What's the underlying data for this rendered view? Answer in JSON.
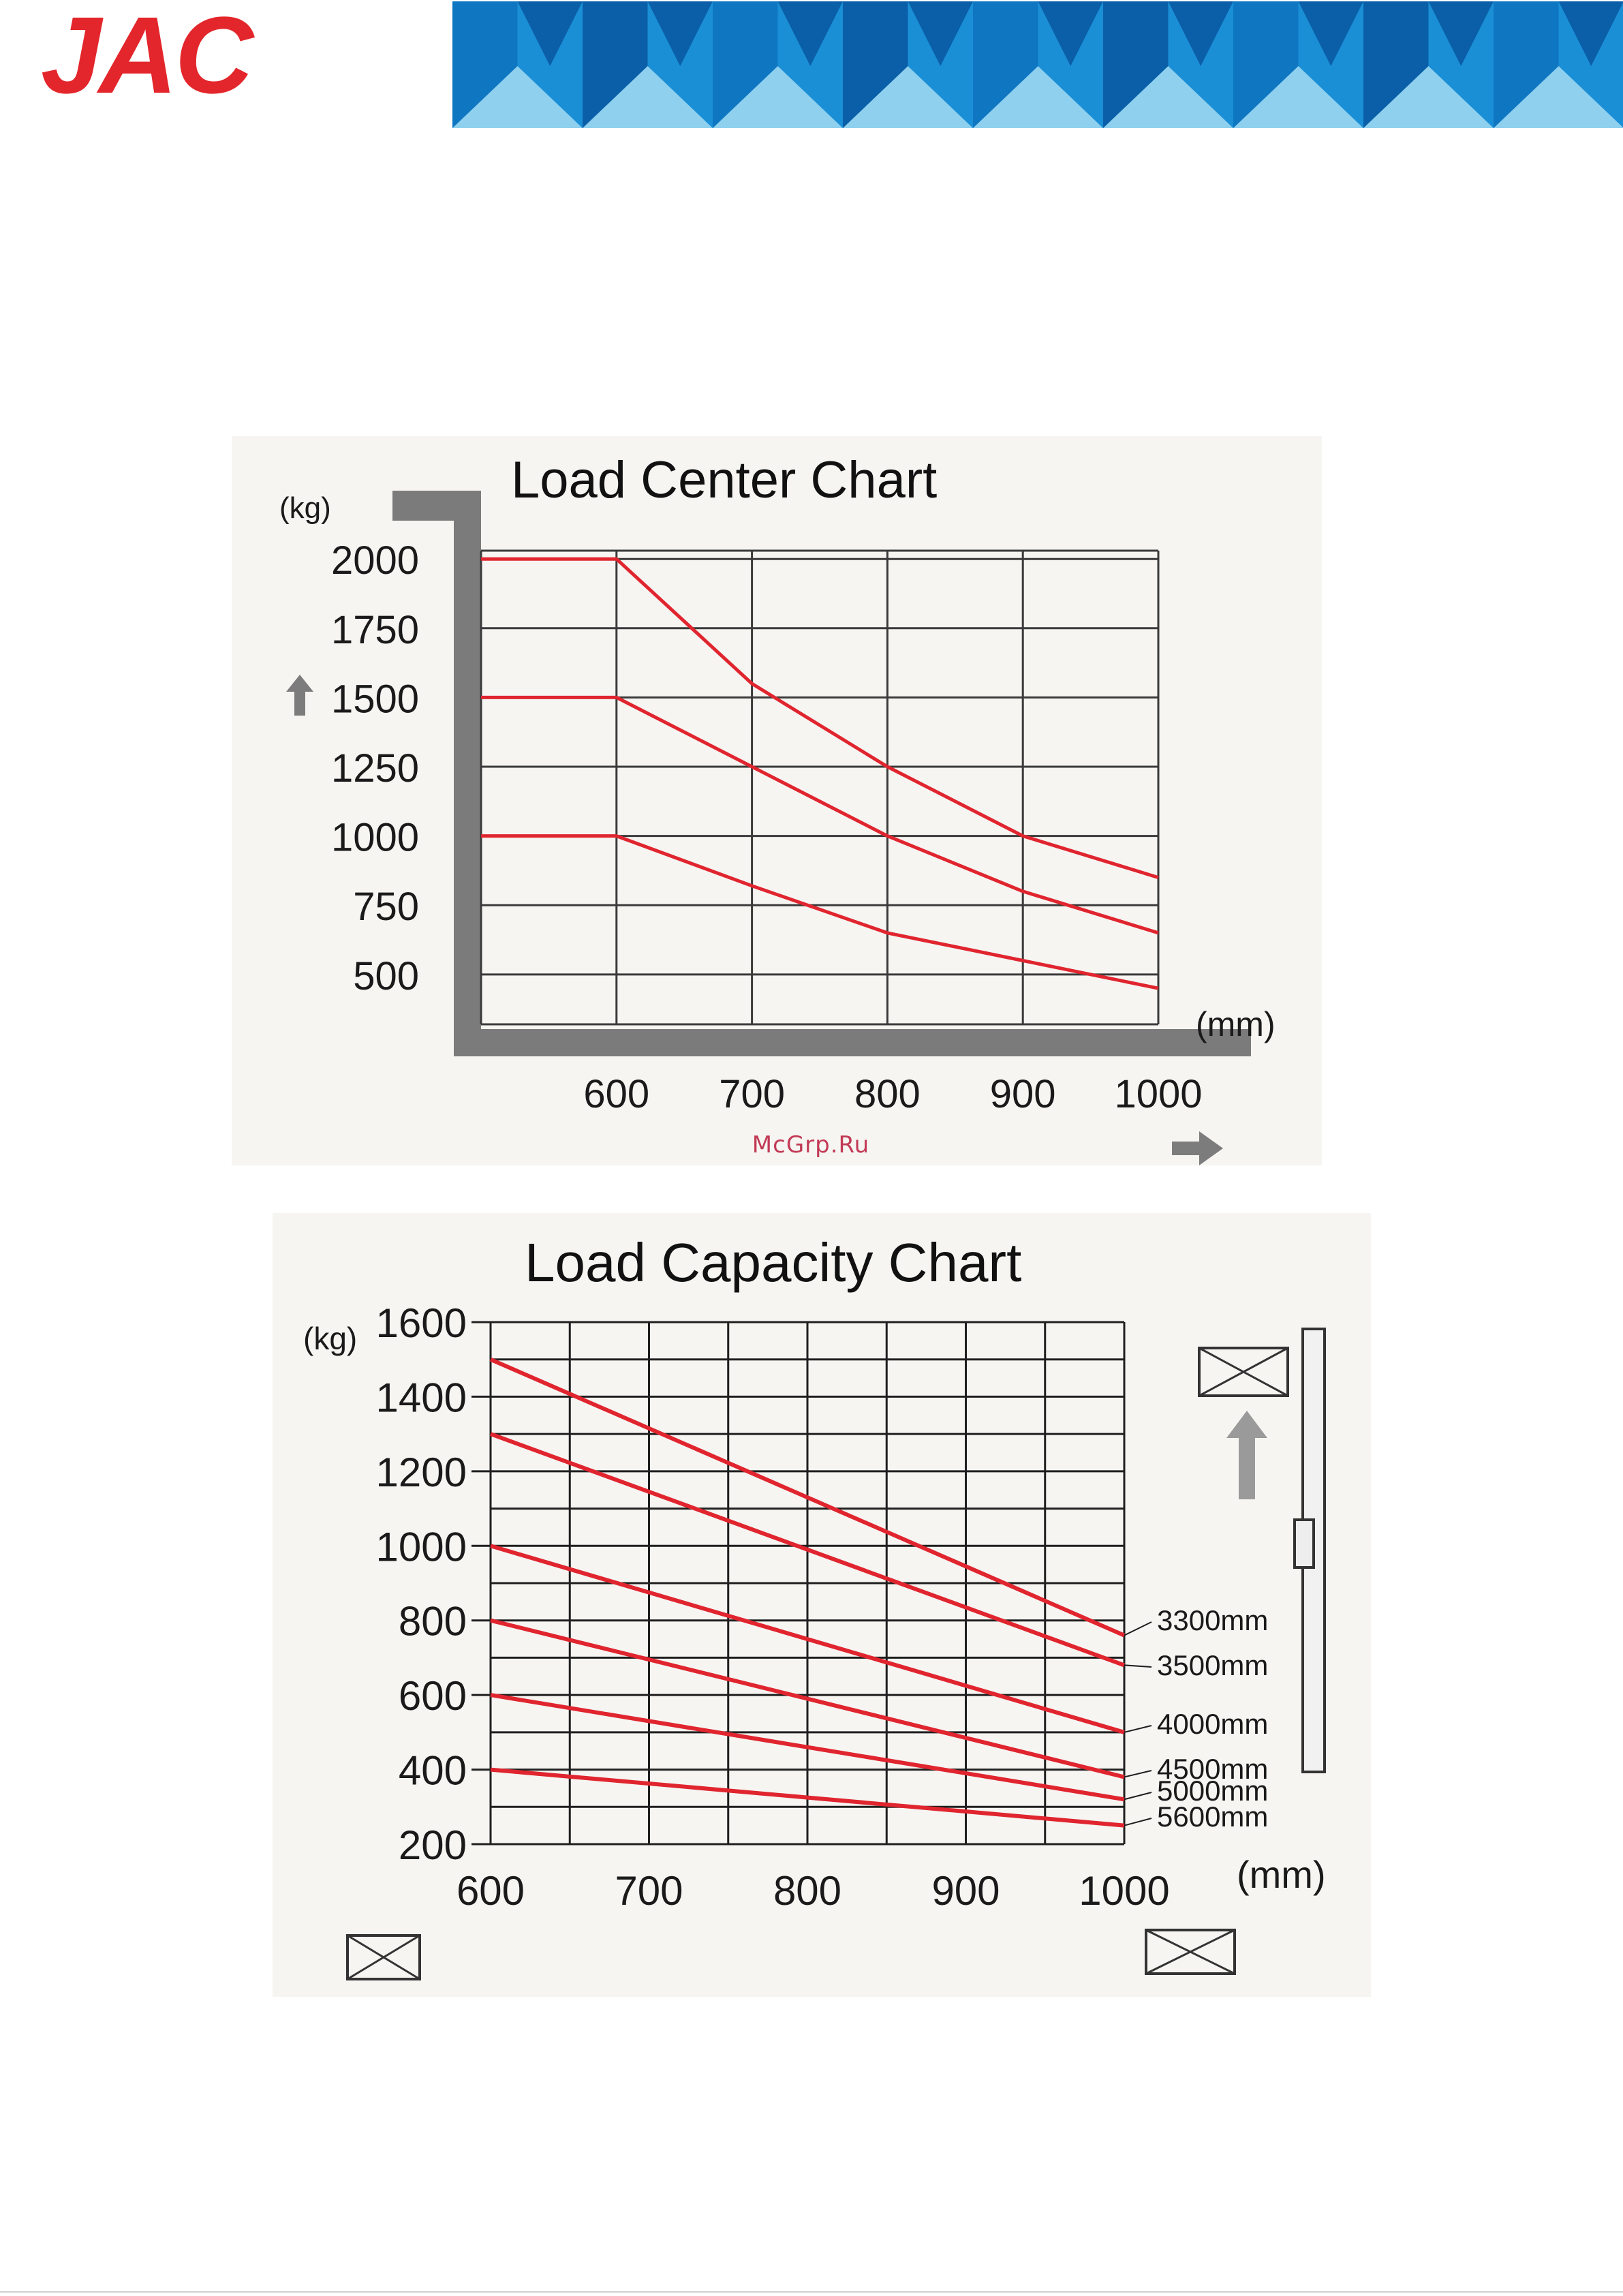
{
  "header": {
    "logo_text": "JAC",
    "logo_color": "#e3262b",
    "banner_colors": [
      "#0a5fa8",
      "#1b8fd6",
      "#8fd0ef"
    ]
  },
  "watermark": "McGrp.Ru",
  "chart_data": [
    {
      "type": "line",
      "title": "Load Center Chart",
      "ylabel": "(kg)",
      "xlabel": "(mm)",
      "x_ticks": [
        "600",
        "700",
        "800",
        "900",
        "1000"
      ],
      "y_ticks": [
        "2000",
        "1750",
        "1500",
        "1250",
        "1000",
        "750",
        "500"
      ],
      "xlim": [
        500,
        1000
      ],
      "ylim": [
        320,
        2030
      ],
      "grid": true,
      "series": [
        {
          "x": [
            500,
            600,
            700,
            800,
            900,
            1000
          ],
          "y": [
            2000,
            2000,
            1550,
            1250,
            1000,
            850
          ]
        },
        {
          "x": [
            500,
            600,
            700,
            800,
            900,
            1000
          ],
          "y": [
            1500,
            1500,
            1250,
            1000,
            800,
            650
          ]
        },
        {
          "x": [
            500,
            600,
            700,
            800,
            900,
            1000
          ],
          "y": [
            1000,
            1000,
            820,
            650,
            550,
            450
          ]
        }
      ],
      "colors": {
        "line": "#e0252f",
        "grid": "#3a3a3a",
        "frame": "#7b7b7b"
      }
    },
    {
      "type": "line",
      "title": "Load Capacity Chart",
      "ylabel": "(kg)",
      "xlabel": "(mm)",
      "x_ticks": [
        "600",
        "700",
        "800",
        "900",
        "1000"
      ],
      "y_ticks": [
        "1600",
        "1400",
        "1200",
        "1000",
        "800",
        "600",
        "400",
        "200"
      ],
      "xlim": [
        600,
        1000
      ],
      "ylim": [
        200,
        1600
      ],
      "grid": true,
      "series": [
        {
          "name": "3300mm",
          "x": [
            600,
            1000
          ],
          "y": [
            1500,
            760
          ]
        },
        {
          "name": "3500mm",
          "x": [
            600,
            1000
          ],
          "y": [
            1300,
            680
          ]
        },
        {
          "name": "4000mm",
          "x": [
            600,
            1000
          ],
          "y": [
            1000,
            500
          ]
        },
        {
          "name": "4500mm",
          "x": [
            600,
            1000
          ],
          "y": [
            800,
            380
          ]
        },
        {
          "name": "5000mm",
          "x": [
            600,
            1000
          ],
          "y": [
            600,
            320
          ]
        },
        {
          "name": "5600mm",
          "x": [
            600,
            1000
          ],
          "y": [
            400,
            250
          ]
        }
      ],
      "colors": {
        "line": "#e0252f",
        "grid": "#1f1f1f"
      }
    }
  ]
}
